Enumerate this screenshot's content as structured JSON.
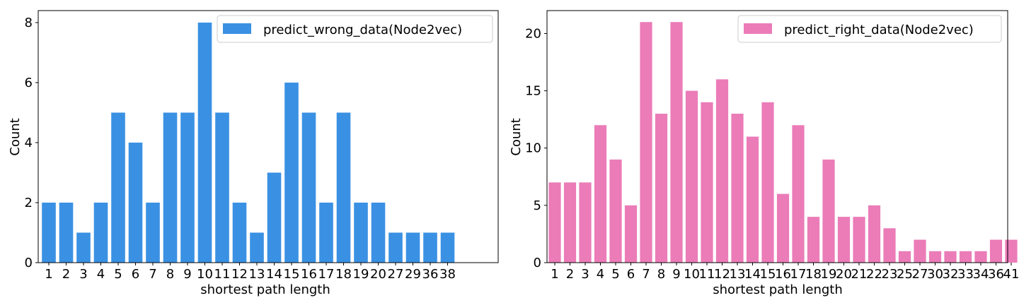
{
  "chart_data": [
    {
      "type": "bar",
      "xlabel": "shortest path length",
      "ylabel": "Count",
      "legend": "predict_wrong_data(Node2vec)",
      "legend_position": "top-right",
      "color": "#3A91E3",
      "categories": [
        "1",
        "2",
        "3",
        "4",
        "5",
        "6",
        "7",
        "8",
        "9",
        "10",
        "11",
        "12",
        "13",
        "14",
        "15",
        "16",
        "17",
        "18",
        "19",
        "20",
        "27",
        "29",
        "36",
        "38"
      ],
      "values": [
        2,
        2,
        1,
        2,
        5,
        4,
        2,
        5,
        5,
        8,
        5,
        2,
        1,
        3,
        6,
        5,
        2,
        5,
        2,
        2,
        1,
        1,
        1,
        1
      ],
      "ylim": [
        0,
        8.4
      ],
      "yticks": [
        "0",
        "2",
        "4",
        "6",
        "8"
      ],
      "grid": false
    },
    {
      "type": "bar",
      "xlabel": "shortest path length",
      "ylabel": "Count",
      "legend": "predict_right_data(Node2vec)",
      "legend_position": "top-right",
      "color": "#EB7CB8",
      "categories": [
        "1",
        "2",
        "3",
        "4",
        "5",
        "6",
        "7",
        "8",
        "9",
        "10",
        "11",
        "12",
        "13",
        "14",
        "15",
        "16",
        "17",
        "18",
        "19",
        "20",
        "21",
        "22",
        "23",
        "25",
        "27",
        "30",
        "32",
        "33",
        "34",
        "36",
        "41"
      ],
      "values": [
        7,
        7,
        7,
        12,
        9,
        5,
        21,
        13,
        21,
        15,
        14,
        16,
        13,
        11,
        14,
        6,
        12,
        4,
        9,
        4,
        4,
        5,
        3,
        1,
        2,
        1,
        1,
        1,
        1,
        2,
        2
      ],
      "ylim": [
        0,
        22
      ],
      "yticks": [
        "0",
        "5",
        "10",
        "15",
        "20"
      ],
      "grid": false
    }
  ]
}
